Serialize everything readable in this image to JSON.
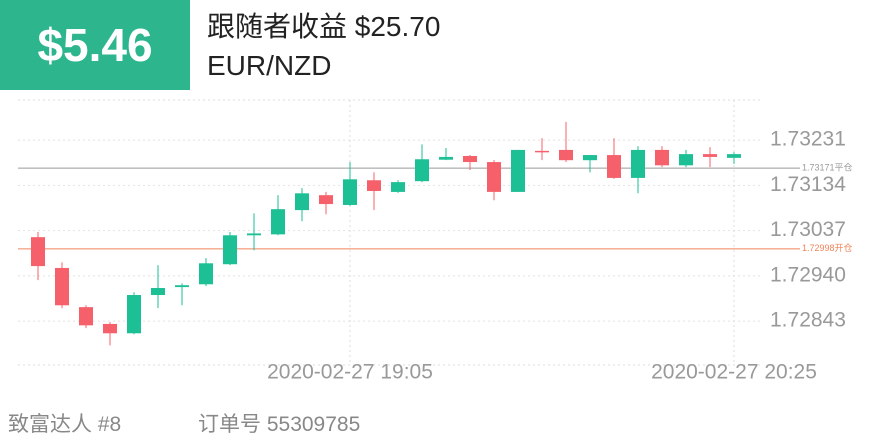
{
  "header": {
    "badge": "$5.46",
    "title": "跟随者收益 $25.70",
    "symbol": "EUR/NZD"
  },
  "footer": {
    "trader": "致富达人 #8",
    "order": "订单号 55309785"
  },
  "chart_data": {
    "type": "candlestick",
    "categories": [
      null,
      null,
      null,
      null,
      null,
      null,
      null,
      null,
      null,
      null,
      null,
      null,
      null,
      "2020-02-27 19:05",
      null,
      null,
      null,
      null,
      null,
      null,
      null,
      null,
      null,
      null,
      null,
      null,
      null,
      null,
      null,
      "2020-02-27 20:25"
    ],
    "open": [
      1.73023,
      1.72957,
      1.72873,
      1.72837,
      1.72817,
      1.72899,
      1.72916,
      1.72922,
      1.72965,
      1.73027,
      1.73029,
      1.73081,
      1.73113,
      1.73092,
      1.73145,
      1.7312,
      1.73143,
      1.73189,
      1.73197,
      1.73184,
      1.7312,
      1.73208,
      1.7321,
      1.73188,
      1.73199,
      1.7315,
      1.7321,
      1.73177,
      1.73201,
      1.73193
    ],
    "high": [
      1.73034,
      1.72969,
      1.72877,
      1.72841,
      1.72905,
      1.72963,
      1.72924,
      1.72978,
      1.73034,
      1.73074,
      1.73113,
      1.73128,
      1.7312,
      1.73184,
      1.73162,
      1.73145,
      1.73222,
      1.73214,
      1.73199,
      1.73188,
      1.7321,
      1.73235,
      1.7327,
      1.73199,
      1.73235,
      1.73218,
      1.73218,
      1.7321,
      1.73216,
      1.73205
    ],
    "low": [
      1.72931,
      1.72871,
      1.72828,
      1.72791,
      1.72815,
      1.72871,
      1.72877,
      1.72918,
      1.72963,
      1.72995,
      1.73027,
      1.73057,
      1.73072,
      1.7309,
      1.73081,
      1.73118,
      1.73141,
      1.73188,
      1.73167,
      1.73102,
      1.7312,
      1.73188,
      1.73184,
      1.73162,
      1.73148,
      1.73117,
      1.73173,
      1.73173,
      1.73173,
      1.7318
    ],
    "close": [
      1.72961,
      1.72877,
      1.72834,
      1.72817,
      1.72899,
      1.72914,
      1.7292,
      1.72967,
      1.73027,
      1.73031,
      1.73083,
      1.73117,
      1.73094,
      1.73147,
      1.73122,
      1.73141,
      1.7319,
      1.73195,
      1.73184,
      1.7312,
      1.7321,
      1.73206,
      1.73188,
      1.73199,
      1.7315,
      1.7321,
      1.73177,
      1.73201,
      1.73195,
      1.73201
    ],
    "up_color": "#1dbf95",
    "down_color": "#f5606a",
    "ylim": [
      1.72749,
      1.73317
    ],
    "yticks": [
      1.72843,
      {
        "value": 1.7294,
        "label": "1.72940"
      },
      1.73037,
      1.73134,
      1.73231
    ],
    "lines": [
      {
        "value": 1.73171,
        "label": "1.73171平仓",
        "color": "#9a9a9a"
      },
      {
        "value": 1.72998,
        "label": "1.72998开仓",
        "color": "#f0845a"
      }
    ],
    "grid": true
  }
}
